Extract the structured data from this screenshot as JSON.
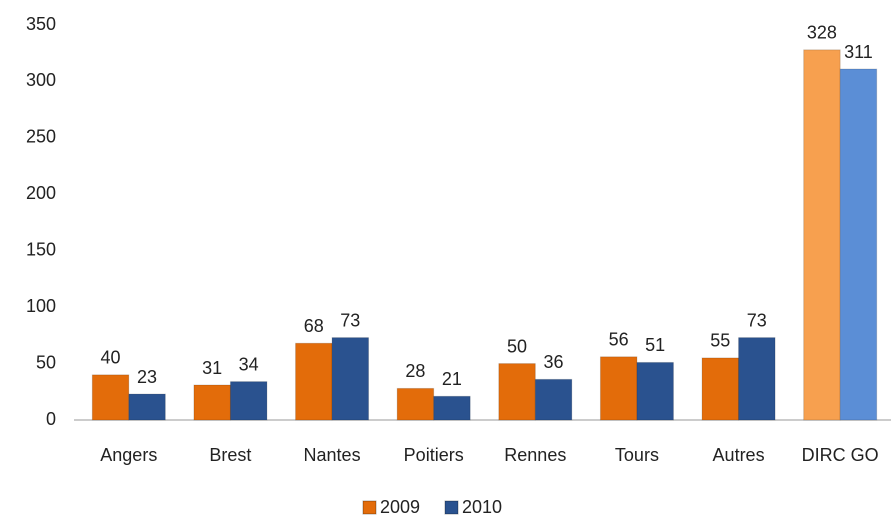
{
  "chart_data": {
    "type": "bar",
    "categories": [
      "Angers",
      "Brest",
      "Nantes",
      "Poitiers",
      "Rennes",
      "Tours",
      "Autres",
      "DIRC GO"
    ],
    "series": [
      {
        "name": "2009",
        "color": "#e36c0a",
        "values": [
          40,
          31,
          68,
          28,
          50,
          56,
          55,
          328
        ],
        "colors": [
          "#e36c0a",
          "#e36c0a",
          "#e36c0a",
          "#e36c0a",
          "#e36c0a",
          "#e36c0a",
          "#e36c0a",
          "#f7a04f"
        ]
      },
      {
        "name": "2010",
        "color": "#2a528f",
        "values": [
          23,
          34,
          73,
          21,
          36,
          51,
          73,
          311
        ],
        "colors": [
          "#2a528f",
          "#2a528f",
          "#2a528f",
          "#2a528f",
          "#2a528f",
          "#2a528f",
          "#2a528f",
          "#5b8ed6"
        ]
      }
    ],
    "ylim": [
      0,
      350
    ],
    "yticks": [
      0,
      50,
      100,
      150,
      200,
      250,
      300,
      350
    ],
    "grid": false,
    "legend": "bottom"
  }
}
